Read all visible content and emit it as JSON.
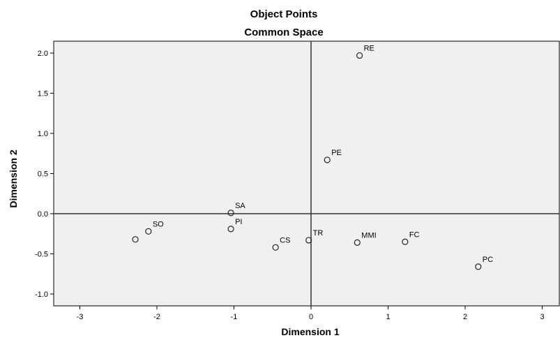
{
  "chart_data": {
    "type": "scatter",
    "title": "Object Points",
    "subtitle": "Common Space",
    "xlabel": "Dimension 1",
    "ylabel": "Dimension 2",
    "xlim": [
      -3.3,
      3.2
    ],
    "ylim": [
      -1.15,
      2.2
    ],
    "x_ticks": [
      -3,
      -2,
      -1,
      0,
      1,
      2,
      3
    ],
    "y_ticks": [
      -1.0,
      -0.5,
      0.0,
      0.5,
      1.0,
      1.5,
      2.0
    ],
    "x_tick_labels": [
      "-3",
      "-2",
      "-1",
      "0",
      "1",
      "2",
      "3"
    ],
    "y_tick_labels": [
      "-1.0",
      "-0.5",
      "0.0",
      "0.5",
      "1.0",
      "1.5",
      "2.0"
    ],
    "reference_lines": {
      "x": 0,
      "y": 0
    },
    "grid": false,
    "plot_background": "#f0f0f0",
    "points": [
      {
        "label": "RE",
        "x": 0.63,
        "y": 1.97
      },
      {
        "label": "PE",
        "x": 0.21,
        "y": 0.67
      },
      {
        "label": "SA",
        "x": -1.04,
        "y": 0.01
      },
      {
        "label": "PI",
        "x": -1.04,
        "y": -0.19
      },
      {
        "label": "",
        "x": -2.28,
        "y": -0.32
      },
      {
        "label": "SO",
        "x": -2.11,
        "y": -0.22
      },
      {
        "label": "CS",
        "x": -0.46,
        "y": -0.42
      },
      {
        "label": "TR",
        "x": -0.03,
        "y": -0.33
      },
      {
        "label": "MMI",
        "x": 0.6,
        "y": -0.36
      },
      {
        "label": "FC",
        "x": 1.22,
        "y": -0.35
      },
      {
        "label": "PC",
        "x": 2.17,
        "y": -0.66
      }
    ]
  }
}
